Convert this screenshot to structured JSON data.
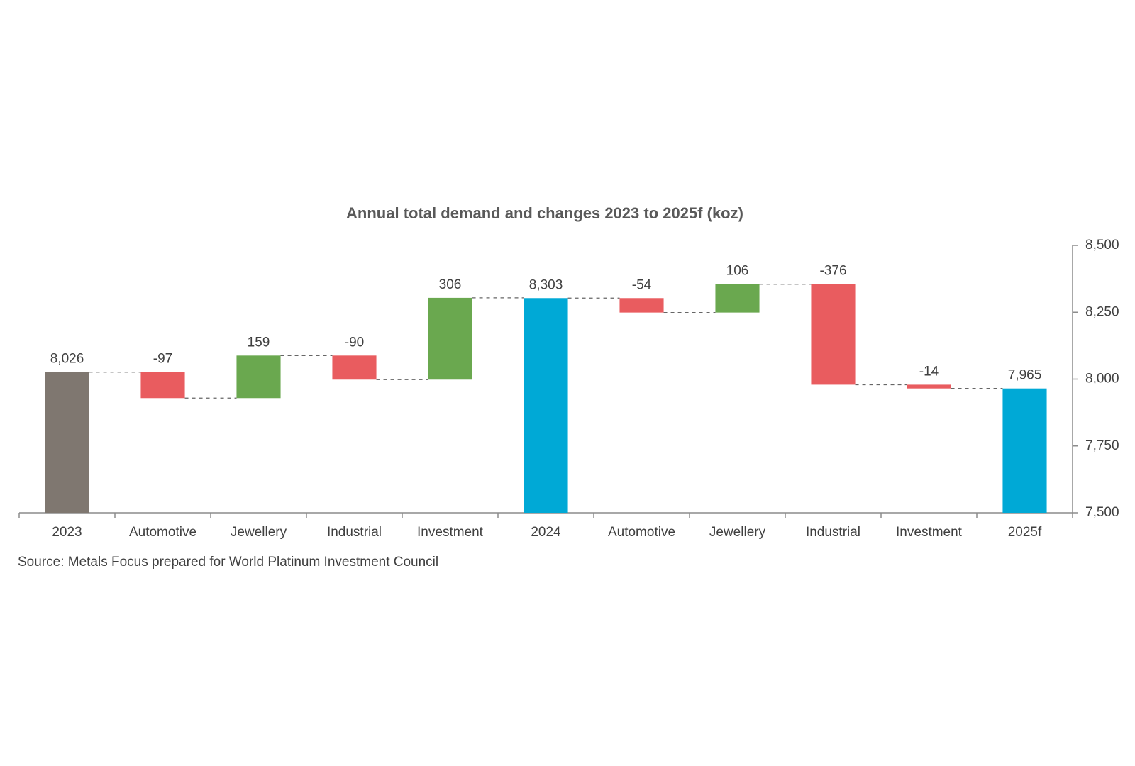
{
  "chart_data": {
    "type": "waterfall",
    "title": "Annual total demand and changes 2023 to 2025f (koz)",
    "source": "Source: Metals Focus prepared for World Platinum Investment Council",
    "categories": [
      "2023",
      "Automotive",
      "Jewellery",
      "Industrial",
      "Investment",
      "2024",
      "Automotive",
      "Jewellery",
      "Industrial",
      "Investment",
      "2025f"
    ],
    "values": [
      8026,
      -97,
      159,
      -90,
      306,
      8303,
      -54,
      106,
      -376,
      -14,
      7965
    ],
    "value_labels": [
      "8,026",
      "-97",
      "159",
      "-90",
      "306",
      "8,303",
      "-54",
      "106",
      "-376",
      "-14",
      "7,965"
    ],
    "is_total": [
      true,
      false,
      false,
      false,
      false,
      true,
      false,
      false,
      false,
      false,
      true
    ],
    "colors": [
      "#7f7770",
      "#e95c5f",
      "#6aa84f",
      "#e95c5f",
      "#6aa84f",
      "#00a9d6",
      "#e95c5f",
      "#6aa84f",
      "#e95c5f",
      "#e95c5f",
      "#00a9d6"
    ],
    "ylim": [
      7500,
      8500
    ],
    "yticks": [
      {
        "value": 7500,
        "label": "7,500"
      },
      {
        "value": 7750,
        "label": "7,750"
      },
      {
        "value": 8000,
        "label": "8,000"
      },
      {
        "value": 8250,
        "label": "8,250"
      },
      {
        "value": 8500,
        "label": "8,500"
      }
    ],
    "y_axis_side": "right",
    "connectors": true
  }
}
